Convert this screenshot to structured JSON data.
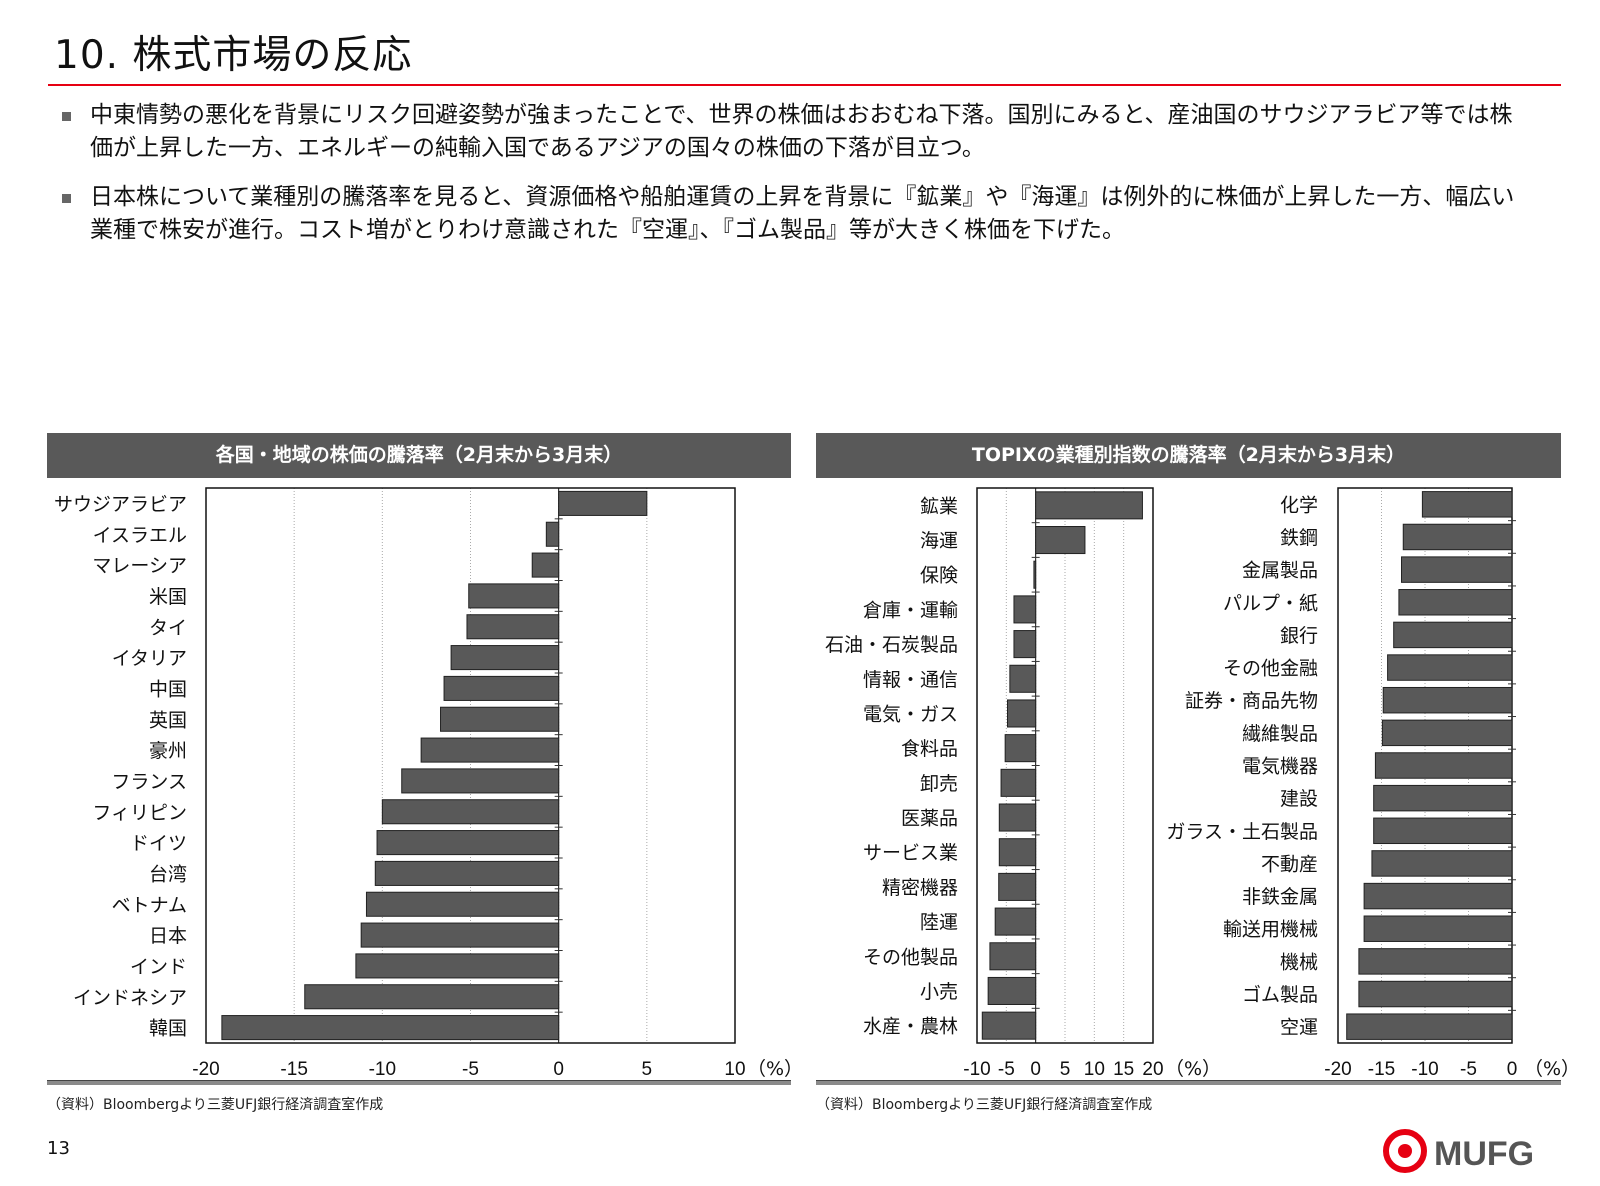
{
  "page": {
    "title": "10. 株式市場の反応",
    "bullets": [
      "中東情勢の悪化を背景にリスク回避姿勢が強まったことで、世界の株価はおおむね下落。国別にみると、産油国のサウジアラビア等では株価が上昇した一方、エネルギーの純輸入国であるアジアの国々の株価の下落が目立つ。",
      "日本株について業種別の騰落率を見ると、資源価格や船舶運賃の上昇を背景に『鉱業』や『海運』は例外的に株価が上昇した一方、幅広い業種で株安が進行。コスト増がとりわけ意識された『空運』、『ゴム製品』等が大きく株価を下げた。"
    ],
    "page_number": "13",
    "logo_text": "MUFG"
  },
  "panels": [
    {
      "title": "各国・地域の株価の騰落率（2月末から3月末）",
      "source": "（資料）Bloombergより三菱UFJ銀行経済調査室作成"
    },
    {
      "title": "TOPIXの業種別指数の騰落率（2月末から3月末）",
      "source": "（資料）Bloombergより三菱UFJ銀行経済調査室作成"
    }
  ],
  "colors": {
    "bar": "#595959",
    "accent": "#e60012",
    "header": "#595959"
  },
  "chart_data": [
    {
      "type": "bar",
      "orientation": "horizontal",
      "title": "各国・地域の株価の騰落率（2月末から3月末）",
      "unit": "（%）",
      "xlim": [
        -20,
        10
      ],
      "ticks": [
        "-20",
        "-15",
        "-10",
        "-5",
        "0",
        "5",
        "10"
      ],
      "grid": true,
      "categories": [
        "サウジアラビア",
        "イスラエル",
        "マレーシア",
        "米国",
        "タイ",
        "イタリア",
        "中国",
        "英国",
        "豪州",
        "フランス",
        "フィリピン",
        "ドイツ",
        "台湾",
        "ベトナム",
        "日本",
        "インド",
        "インドネシア",
        "韓国"
      ],
      "values": [
        5.0,
        -0.7,
        -1.5,
        -5.1,
        -5.2,
        -6.1,
        -6.5,
        -6.7,
        -7.8,
        -8.9,
        -10.0,
        -10.3,
        -10.4,
        -10.9,
        -11.2,
        -11.5,
        -14.4,
        -19.1
      ]
    },
    {
      "type": "bar",
      "orientation": "horizontal",
      "title": "TOPIXの業種別指数の騰落率（2月末から3月末）",
      "unit": "（%）",
      "xlim": [
        -10,
        20
      ],
      "ticks": [
        "-10",
        "-5",
        "0",
        "5",
        "10",
        "15",
        "20"
      ],
      "grid": true,
      "categories": [
        "鉱業",
        "海運",
        "保険",
        "倉庫・運輸",
        "石油・石炭製品",
        "情報・通信",
        "電気・ガス",
        "食料品",
        "卸売",
        "医薬品",
        "サービス業",
        "精密機器",
        "陸運",
        "その他製品",
        "小売",
        "水産・農林"
      ],
      "values": [
        18.2,
        8.4,
        -0.3,
        -3.7,
        -3.7,
        -4.4,
        -4.8,
        -5.2,
        -5.9,
        -6.2,
        -6.2,
        -6.3,
        -6.9,
        -7.8,
        -8.1,
        -9.1
      ]
    },
    {
      "type": "bar",
      "orientation": "horizontal",
      "title": "TOPIXの業種別指数の騰落率（2月末から3月末）",
      "unit": "（%）",
      "xlim": [
        -20,
        0
      ],
      "ticks": [
        "-20",
        "-15",
        "-10",
        "-5",
        "0"
      ],
      "grid": true,
      "categories": [
        "化学",
        "鉄鋼",
        "金属製品",
        "パルプ・紙",
        "銀行",
        "その他金融",
        "証券・商品先物",
        "繊維製品",
        "電気機器",
        "建設",
        "ガラス・土石製品",
        "不動産",
        "非鉄金属",
        "輸送用機械",
        "機械",
        "ゴム製品",
        "空運"
      ],
      "values": [
        -10.3,
        -12.5,
        -12.7,
        -13.0,
        -13.6,
        -14.3,
        -14.8,
        -14.9,
        -15.7,
        -15.9,
        -15.9,
        -16.1,
        -17.0,
        -17.0,
        -17.6,
        -17.6,
        -19.0
      ]
    }
  ]
}
